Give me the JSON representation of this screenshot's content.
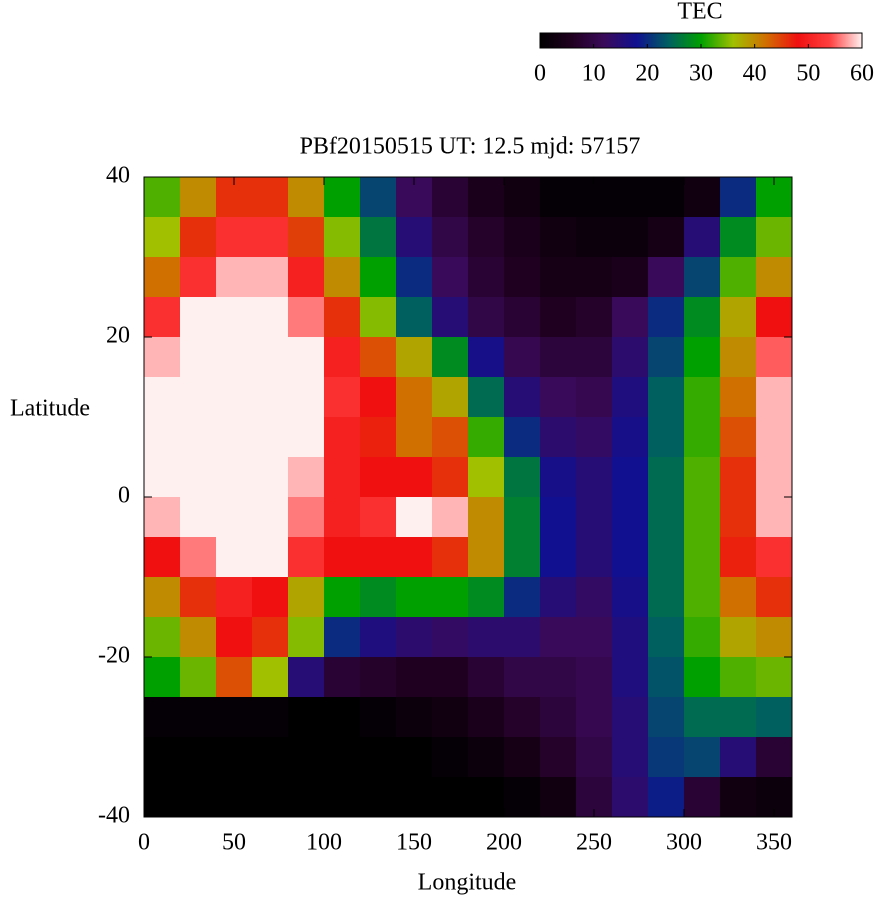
{
  "chart_data": {
    "type": "heatmap",
    "title": "PBf20150515  UT: 12.5  mjd: 57157",
    "xlabel": "Longitude",
    "ylabel": "Latitude",
    "colorbar_label": "TEC",
    "x": [
      10,
      30,
      50,
      70,
      90,
      110,
      130,
      150,
      170,
      190,
      210,
      230,
      250,
      270,
      290,
      310,
      330,
      350
    ],
    "y": [
      37.5,
      32.5,
      27.5,
      22.5,
      17.5,
      12.5,
      7.5,
      2.5,
      -2.5,
      -7.5,
      -12.5,
      -17.5,
      -22.5,
      -27.5,
      -32.5,
      -37.5
    ],
    "values": [
      [
        33,
        40,
        46,
        46,
        40,
        30,
        22,
        12,
        8,
        5,
        3,
        1,
        1,
        1,
        1,
        3,
        20,
        30
      ],
      [
        36,
        46,
        52,
        52,
        45,
        35,
        26,
        15,
        10,
        7,
        5,
        3,
        2,
        2,
        4,
        15,
        28,
        34
      ],
      [
        42,
        52,
        58,
        58,
        50,
        40,
        30,
        20,
        12,
        8,
        6,
        4,
        4,
        5,
        12,
        22,
        33,
        40
      ],
      [
        52,
        60,
        60,
        60,
        56,
        46,
        35,
        24,
        15,
        10,
        8,
        6,
        7,
        12,
        20,
        28,
        38,
        48
      ],
      [
        58,
        60,
        60,
        60,
        60,
        50,
        44,
        38,
        28,
        17,
        11,
        9,
        9,
        14,
        22,
        30,
        40,
        55
      ],
      [
        60,
        60,
        60,
        60,
        60,
        52,
        48,
        42,
        38,
        25,
        15,
        12,
        11,
        16,
        24,
        32,
        42,
        58
      ],
      [
        60,
        60,
        60,
        60,
        60,
        50,
        47,
        42,
        44,
        32,
        20,
        14,
        13,
        17,
        24,
        32,
        44,
        58
      ],
      [
        60,
        60,
        60,
        60,
        58,
        50,
        48,
        48,
        46,
        36,
        26,
        17,
        15,
        18,
        25,
        33,
        46,
        58
      ],
      [
        58,
        60,
        60,
        60,
        56,
        50,
        52,
        60,
        58,
        40,
        27,
        18,
        15,
        18,
        25,
        33,
        46,
        58
      ],
      [
        48,
        56,
        60,
        60,
        52,
        48,
        48,
        48,
        46,
        40,
        27,
        18,
        15,
        18,
        25,
        33,
        47,
        52
      ],
      [
        40,
        46,
        50,
        48,
        38,
        30,
        28,
        30,
        30,
        28,
        20,
        15,
        13,
        17,
        25,
        33,
        42,
        46
      ],
      [
        34,
        40,
        48,
        46,
        35,
        20,
        16,
        14,
        13,
        14,
        14,
        12,
        12,
        16,
        24,
        32,
        38,
        40
      ],
      [
        30,
        34,
        44,
        36,
        15,
        8,
        7,
        6,
        6,
        8,
        10,
        10,
        11,
        16,
        23,
        30,
        33,
        34
      ],
      [
        1,
        1,
        1,
        1,
        0,
        0,
        1,
        2,
        3,
        5,
        7,
        9,
        11,
        15,
        22,
        25,
        25,
        24
      ],
      [
        0,
        0,
        0,
        0,
        0,
        0,
        0,
        0,
        1,
        2,
        4,
        7,
        10,
        15,
        21,
        22,
        15,
        8
      ],
      [
        0,
        0,
        0,
        0,
        0,
        0,
        0,
        0,
        0,
        0,
        1,
        3,
        9,
        14,
        19,
        8,
        3,
        2
      ]
    ],
    "xlim": [
      0,
      360
    ],
    "ylim": [
      -40,
      40
    ],
    "xticks": [
      0,
      50,
      100,
      150,
      200,
      250,
      300,
      350
    ],
    "yticks": [
      -40,
      -20,
      0,
      20,
      40
    ],
    "zlim": [
      0,
      60
    ],
    "zticks": [
      0,
      10,
      20,
      30,
      40,
      50,
      60
    ],
    "colorscale": [
      "#000000",
      "#200020",
      "#3a0a5a",
      "#101090",
      "#006060",
      "#00a000",
      "#a0c000",
      "#d07000",
      "#f01010",
      "#ff4040",
      "#fff0f0"
    ]
  }
}
